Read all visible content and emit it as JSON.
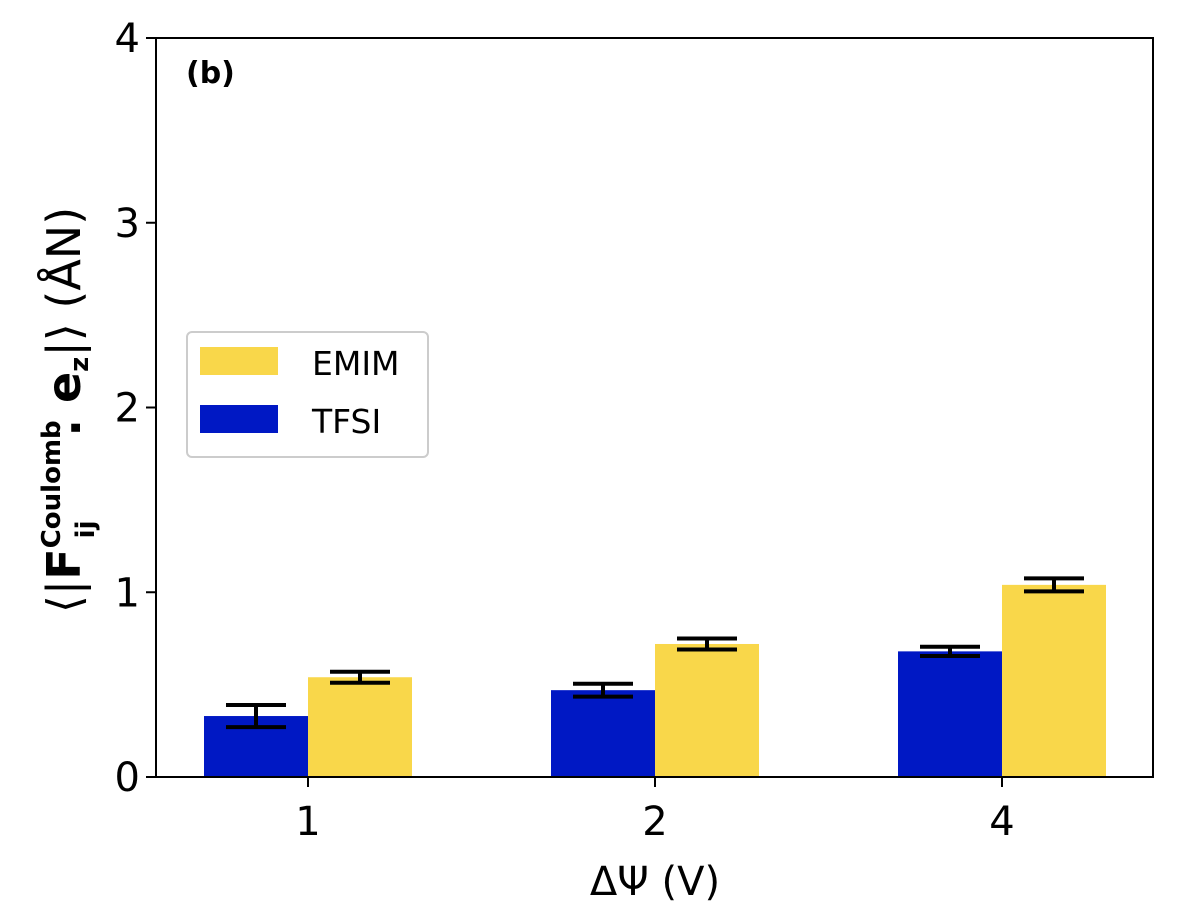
{
  "chart_data": {
    "type": "bar",
    "panel_label": "(b)",
    "categories": [
      "1",
      "2",
      "4"
    ],
    "series": [
      {
        "name": "TFSI",
        "color": "#0018c4",
        "values": [
          0.33,
          0.47,
          0.68
        ],
        "errors": [
          0.06,
          0.035,
          0.025
        ]
      },
      {
        "name": "EMIM",
        "color": "#f9d74a",
        "values": [
          0.54,
          0.72,
          1.04
        ],
        "errors": [
          0.03,
          0.03,
          0.035
        ]
      }
    ],
    "legend": [
      {
        "name": "EMIM",
        "color": "#f9d74a"
      },
      {
        "name": "TFSI",
        "color": "#0018c4"
      }
    ],
    "legend_position": "center-left",
    "xlabel": "ΔΨ (V)",
    "ylabel": {
      "open": "⟨|",
      "F": "F",
      "sup": "Coulomb",
      "sub": "ij",
      "dot": ". ",
      "e": "e",
      "e_sub": "z",
      "close": "|⟩ (ÅN)"
    },
    "ylim": [
      0,
      4
    ],
    "yticks": [
      "0",
      "1",
      "2",
      "3",
      "4"
    ],
    "grid": false
  }
}
